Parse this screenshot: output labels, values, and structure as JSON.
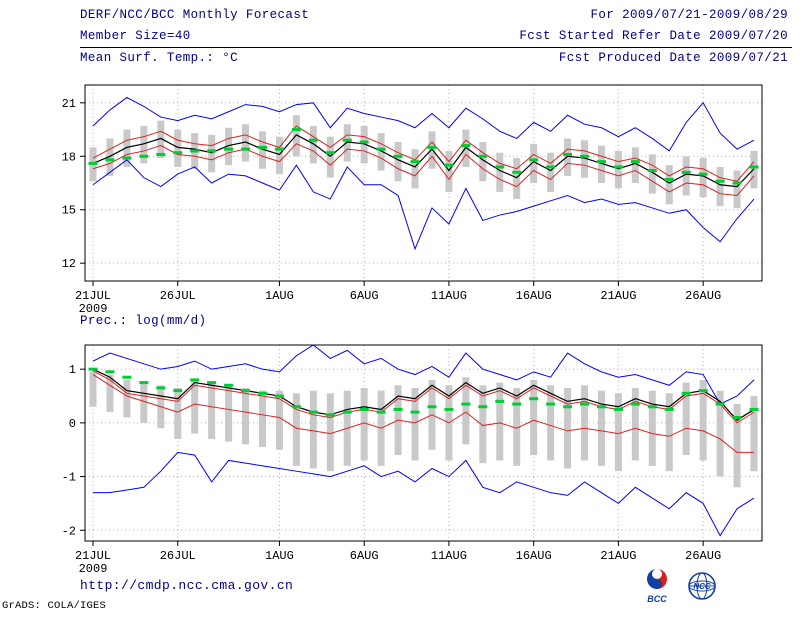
{
  "header": {
    "title": "DERF/NCC/BCC Monthly Forecast",
    "member_size": "Member Size=40",
    "for_range": "For 2009/07/21-2009/08/29",
    "fcst_started": "Fcst Started Refer Date 2009/07/20",
    "fcst_produced": "Fcst Produced Date 2009/07/21"
  },
  "footer": {
    "url": "http://cmdp.ncc.cma.gov.cn",
    "bcc_logo_text": "BCC",
    "ncc_logo_text": "NCC",
    "grads_credit": "GrADS: COLA/IGES"
  },
  "colors": {
    "header_text": "#00008b",
    "axis_text": "#000000",
    "frame": "#000000",
    "grid": "#b4b4b4",
    "spread_bar": "#c9c9c9",
    "ensemble_max_min": "#0000ff",
    "quartile": "#dd2222",
    "mean": "#000000",
    "climatology": "#00cc33",
    "url_text": "#00008b",
    "logo_blue": "#1440a0",
    "logo_red": "#d42020"
  },
  "chart_data": [
    {
      "type": "line",
      "name": "temp",
      "title": "Mean Surf. Temp.: °C",
      "ylim": [
        11,
        22
      ],
      "yticks": [
        12,
        15,
        18,
        21
      ],
      "x_start": "2009/07/21",
      "x_end": "2009/08/29",
      "xticks": [
        {
          "day": 0,
          "label": "21JUL",
          "sub": "2009"
        },
        {
          "day": 5,
          "label": "26JUL"
        },
        {
          "day": 11,
          "label": "1AUG"
        },
        {
          "day": 16,
          "label": "6AUG"
        },
        {
          "day": 21,
          "label": "11AUG"
        },
        {
          "day": 26,
          "label": "16AUG"
        },
        {
          "day": 31,
          "label": "21AUG"
        },
        {
          "day": 36,
          "label": "26AUG"
        }
      ],
      "ensemble_spread": {
        "top": [
          18.5,
          19.0,
          19.5,
          19.7,
          20.0,
          19.5,
          19.3,
          19.2,
          19.6,
          19.8,
          19.4,
          19.1,
          20.3,
          19.7,
          19.1,
          19.8,
          19.7,
          19.3,
          18.8,
          18.4,
          19.4,
          18.3,
          19.5,
          18.8,
          18.2,
          17.9,
          18.7,
          18.2,
          19.0,
          18.9,
          18.6,
          18.3,
          18.5,
          18.1,
          17.5,
          18.0,
          17.9,
          17.4,
          17.2,
          18.3
        ],
        "bottom": [
          16.6,
          16.9,
          17.4,
          17.6,
          17.9,
          17.4,
          17.3,
          17.1,
          17.5,
          17.7,
          17.3,
          17.0,
          18.0,
          17.6,
          16.8,
          17.7,
          17.6,
          17.2,
          16.6,
          16.2,
          17.3,
          16.0,
          17.4,
          16.6,
          16.0,
          15.6,
          16.5,
          16.0,
          16.9,
          16.8,
          16.5,
          16.2,
          16.5,
          15.9,
          15.3,
          15.8,
          15.7,
          15.2,
          15.1,
          16.2
        ]
      },
      "series": [
        {
          "name": "ensemble-max",
          "color": "#0000ff",
          "width": 1,
          "values": [
            19.7,
            20.6,
            21.3,
            20.8,
            20.2,
            20.0,
            20.3,
            20.1,
            20.5,
            20.9,
            20.8,
            20.5,
            20.9,
            21.0,
            19.6,
            20.7,
            20.4,
            20.2,
            20.0,
            19.6,
            20.4,
            19.6,
            20.7,
            20.1,
            19.4,
            19.0,
            19.9,
            19.4,
            20.3,
            19.8,
            19.6,
            19.1,
            19.6,
            19.0,
            18.3,
            19.9,
            21.0,
            19.3,
            18.4,
            18.9
          ]
        },
        {
          "name": "upper-quartile",
          "color": "#dd2222",
          "width": 1,
          "values": [
            17.9,
            18.4,
            18.9,
            19.1,
            19.4,
            18.9,
            18.7,
            18.6,
            19.0,
            19.2,
            18.8,
            18.5,
            19.7,
            19.1,
            18.5,
            19.2,
            19.1,
            18.7,
            18.2,
            17.8,
            18.8,
            17.7,
            18.9,
            18.2,
            17.6,
            17.3,
            18.1,
            17.6,
            18.4,
            18.3,
            18.0,
            17.7,
            17.9,
            17.5,
            16.9,
            17.4,
            17.3,
            16.8,
            16.6,
            17.7
          ]
        },
        {
          "name": "ensemble-mean",
          "color": "#000000",
          "width": 1.2,
          "values": [
            17.6,
            18.0,
            18.5,
            18.7,
            19.0,
            18.5,
            18.4,
            18.2,
            18.6,
            18.8,
            18.4,
            18.1,
            19.2,
            18.7,
            18.0,
            18.8,
            18.7,
            18.3,
            17.8,
            17.4,
            18.4,
            17.2,
            18.5,
            17.8,
            17.2,
            16.8,
            17.7,
            17.2,
            18.0,
            17.9,
            17.6,
            17.3,
            17.6,
            17.1,
            16.5,
            17.0,
            16.9,
            16.4,
            16.3,
            17.3
          ]
        },
        {
          "name": "lower-quartile",
          "color": "#dd2222",
          "width": 1,
          "values": [
            17.3,
            17.6,
            18.1,
            18.3,
            18.6,
            18.1,
            18.0,
            17.8,
            18.2,
            18.4,
            18.0,
            17.7,
            18.7,
            18.3,
            17.5,
            18.4,
            18.3,
            17.9,
            17.3,
            16.9,
            18.0,
            16.7,
            18.1,
            17.3,
            16.7,
            16.3,
            17.2,
            16.7,
            17.6,
            17.5,
            17.2,
            16.9,
            17.2,
            16.6,
            16.0,
            16.5,
            16.4,
            15.9,
            15.8,
            16.9
          ]
        },
        {
          "name": "ensemble-min",
          "color": "#0000ff",
          "width": 1,
          "values": [
            16.4,
            17.1,
            17.8,
            16.8,
            16.3,
            17.0,
            17.4,
            16.5,
            17.0,
            16.9,
            16.5,
            16.1,
            17.5,
            16.0,
            15.6,
            17.4,
            16.4,
            16.4,
            15.8,
            12.8,
            15.1,
            14.2,
            16.2,
            14.4,
            14.7,
            14.9,
            15.2,
            15.5,
            15.8,
            15.4,
            15.6,
            15.3,
            15.4,
            15.1,
            14.8,
            15.0,
            14.0,
            13.2,
            14.5,
            15.6
          ]
        }
      ],
      "markers": {
        "name": "climatology",
        "color": "#00cc33",
        "values": [
          17.6,
          17.8,
          17.9,
          18.0,
          18.1,
          18.2,
          18.3,
          18.3,
          18.4,
          18.4,
          18.5,
          18.4,
          19.5,
          18.9,
          18.2,
          18.9,
          18.8,
          18.4,
          18.0,
          17.7,
          18.5,
          17.5,
          18.6,
          18.0,
          17.4,
          17.1,
          17.8,
          17.4,
          18.1,
          18.0,
          17.7,
          17.4,
          17.7,
          17.2,
          16.7,
          17.1,
          17.0,
          16.6,
          16.5,
          17.4
        ]
      }
    },
    {
      "type": "line",
      "name": "prec",
      "title": "Prec.: log(mm/d)",
      "ylim": [
        -2.2,
        1.45
      ],
      "yticks": [
        1,
        0,
        -1,
        -2
      ],
      "x_start": "2009/07/21",
      "x_end": "2009/08/29",
      "xticks": [
        {
          "day": 0,
          "label": "21JUL",
          "sub": "2009"
        },
        {
          "day": 5,
          "label": "26JUL"
        },
        {
          "day": 11,
          "label": "1AUG"
        },
        {
          "day": 16,
          "label": "6AUG"
        },
        {
          "day": 21,
          "label": "11AUG"
        },
        {
          "day": 26,
          "label": "16AUG"
        },
        {
          "day": 31,
          "label": "21AUG"
        },
        {
          "day": 36,
          "label": "26AUG"
        }
      ],
      "ensemble_spread": {
        "top": [
          0.95,
          0.9,
          0.8,
          0.75,
          0.7,
          0.65,
          0.8,
          0.75,
          0.7,
          0.65,
          0.6,
          0.6,
          0.55,
          0.6,
          0.55,
          0.6,
          0.65,
          0.6,
          0.7,
          0.65,
          0.8,
          0.7,
          0.85,
          0.7,
          0.75,
          0.65,
          0.8,
          0.7,
          0.65,
          0.7,
          0.6,
          0.55,
          0.65,
          0.6,
          0.55,
          0.75,
          0.8,
          0.6,
          0.35,
          0.5
        ],
        "bottom": [
          0.3,
          0.2,
          0.1,
          0.0,
          -0.1,
          -0.3,
          -0.2,
          -0.3,
          -0.35,
          -0.4,
          -0.45,
          -0.5,
          -0.8,
          -0.85,
          -0.9,
          -0.8,
          -0.7,
          -0.8,
          -0.6,
          -0.7,
          -0.5,
          -0.7,
          -0.4,
          -0.75,
          -0.7,
          -0.8,
          -0.6,
          -0.7,
          -0.85,
          -0.7,
          -0.8,
          -0.9,
          -0.7,
          -0.8,
          -0.9,
          -0.6,
          -0.7,
          -1.0,
          -1.2,
          -0.9
        ]
      },
      "series": [
        {
          "name": "ensemble-max",
          "color": "#0000ff",
          "width": 1,
          "values": [
            1.15,
            1.3,
            1.2,
            1.1,
            1.0,
            1.05,
            1.15,
            1.0,
            1.05,
            1.1,
            1.0,
            0.95,
            1.25,
            1.45,
            1.2,
            1.35,
            1.1,
            1.2,
            1.0,
            0.9,
            1.05,
            0.85,
            1.3,
            1.0,
            0.9,
            0.8,
            0.95,
            0.85,
            1.3,
            1.1,
            0.95,
            0.85,
            0.9,
            0.8,
            0.7,
            0.95,
            0.9,
            0.35,
            0.5,
            0.8
          ]
        },
        {
          "name": "ensemble-mean",
          "color": "#000000",
          "width": 1.2,
          "values": [
            1.0,
            0.85,
            0.6,
            0.55,
            0.5,
            0.45,
            0.75,
            0.7,
            0.65,
            0.6,
            0.55,
            0.5,
            0.3,
            0.2,
            0.15,
            0.25,
            0.3,
            0.25,
            0.5,
            0.45,
            0.7,
            0.5,
            0.75,
            0.55,
            0.65,
            0.5,
            0.7,
            0.55,
            0.4,
            0.45,
            0.35,
            0.3,
            0.45,
            0.35,
            0.3,
            0.55,
            0.6,
            0.4,
            0.05,
            0.25
          ]
        },
        {
          "name": "upper-quartile",
          "color": "#dd2222",
          "width": 1,
          "values": [
            0.97,
            0.8,
            0.55,
            0.5,
            0.45,
            0.4,
            0.7,
            0.65,
            0.6,
            0.55,
            0.5,
            0.45,
            0.25,
            0.15,
            0.1,
            0.2,
            0.25,
            0.2,
            0.45,
            0.4,
            0.65,
            0.45,
            0.7,
            0.5,
            0.6,
            0.45,
            0.65,
            0.5,
            0.35,
            0.4,
            0.3,
            0.25,
            0.4,
            0.3,
            0.25,
            0.5,
            0.55,
            0.35,
            0.0,
            0.2
          ]
        },
        {
          "name": "lower-quartile",
          "color": "#dd2222",
          "width": 1,
          "values": [
            0.9,
            0.7,
            0.5,
            0.4,
            0.3,
            0.2,
            0.35,
            0.3,
            0.25,
            0.2,
            0.15,
            0.1,
            -0.1,
            -0.15,
            -0.2,
            -0.1,
            0.0,
            -0.1,
            0.05,
            0.0,
            0.15,
            0.0,
            0.2,
            -0.05,
            0.0,
            -0.1,
            0.05,
            -0.05,
            -0.15,
            -0.1,
            -0.15,
            -0.2,
            -0.1,
            -0.2,
            -0.25,
            -0.1,
            -0.15,
            -0.3,
            -0.55,
            -0.55
          ]
        },
        {
          "name": "ensemble-min",
          "color": "#0000ff",
          "width": 1,
          "values": [
            -1.3,
            -1.3,
            -1.25,
            -1.2,
            -0.9,
            -0.55,
            -0.6,
            -1.1,
            -0.7,
            -0.75,
            -0.8,
            -0.85,
            -0.9,
            -0.95,
            -1.0,
            -0.9,
            -0.8,
            -1.0,
            -0.9,
            -1.1,
            -0.85,
            -1.0,
            -0.7,
            -1.2,
            -1.3,
            -1.1,
            -1.2,
            -1.3,
            -1.35,
            -1.1,
            -1.3,
            -1.5,
            -1.2,
            -1.4,
            -1.6,
            -1.3,
            -1.5,
            -2.1,
            -1.6,
            -1.4
          ]
        }
      ],
      "markers": {
        "name": "climatology",
        "color": "#00cc33",
        "values": [
          1.0,
          0.95,
          0.85,
          0.75,
          0.65,
          0.6,
          0.8,
          0.75,
          0.7,
          0.6,
          0.55,
          0.5,
          0.3,
          0.2,
          0.15,
          0.2,
          0.25,
          0.2,
          0.25,
          0.2,
          0.3,
          0.25,
          0.35,
          0.3,
          0.4,
          0.35,
          0.45,
          0.35,
          0.3,
          0.35,
          0.3,
          0.25,
          0.35,
          0.3,
          0.25,
          0.55,
          0.6,
          0.35,
          0.1,
          0.25
        ]
      }
    }
  ]
}
